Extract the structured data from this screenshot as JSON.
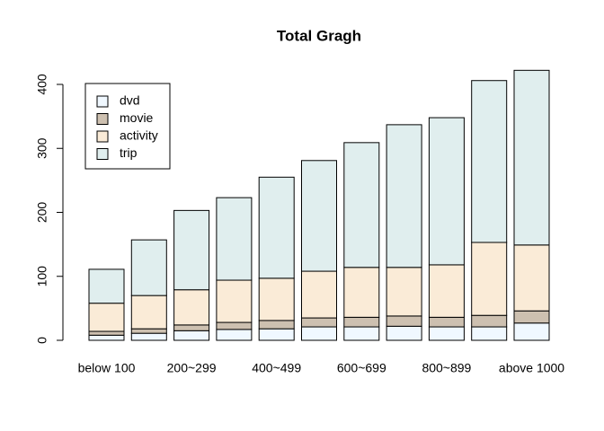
{
  "chart_data": {
    "type": "stacked-bar",
    "title": "Total Gragh",
    "categories": [
      "below 100",
      null,
      "200~299",
      null,
      "400~499",
      null,
      "600~699",
      null,
      "800~899",
      null,
      "above 1000"
    ],
    "series": [
      {
        "name": "dvd",
        "color": "#f0f8ff",
        "values": [
          8,
          11,
          15,
          17,
          18,
          21,
          21,
          22,
          21,
          21,
          27
        ]
      },
      {
        "name": "movie",
        "color": "#cdc0b0",
        "values": [
          6,
          7,
          9,
          11,
          13,
          14,
          15,
          16,
          15,
          18,
          19
        ]
      },
      {
        "name": "activity",
        "color": "#faebd7",
        "values": [
          44,
          52,
          55,
          66,
          66,
          73,
          78,
          76,
          82,
          114,
          103
        ]
      },
      {
        "name": "trip",
        "color": "#e0eeee",
        "values": [
          53,
          87,
          124,
          129,
          158,
          173,
          195,
          223,
          230,
          253,
          273
        ]
      }
    ],
    "ylim": [
      0,
      400
    ],
    "yticks": [
      0,
      100,
      200,
      300,
      400
    ],
    "legend": "top-left"
  }
}
